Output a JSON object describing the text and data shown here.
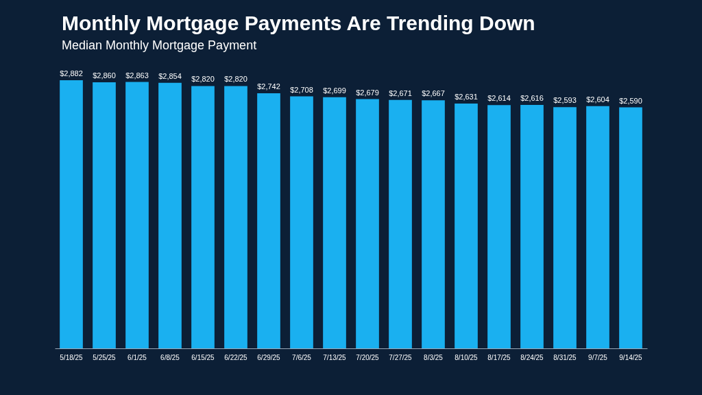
{
  "chart_data": {
    "type": "bar",
    "title": "Monthly Mortgage Payments Are Trending Down",
    "subtitle": "Median Monthly Mortgage Payment",
    "categories": [
      "5/18/25",
      "5/25/25",
      "6/1/25",
      "6/8/25",
      "6/15/25",
      "6/22/25",
      "6/29/25",
      "7/6/25",
      "7/13/25",
      "7/20/25",
      "7/27/25",
      "8/3/25",
      "8/10/25",
      "8/17/25",
      "8/24/25",
      "8/31/25",
      "9/7/25",
      "9/14/25"
    ],
    "values": [
      2882,
      2860,
      2863,
      2854,
      2820,
      2820,
      2742,
      2708,
      2699,
      2679,
      2671,
      2667,
      2631,
      2614,
      2616,
      2593,
      2604,
      2590
    ],
    "value_labels": [
      "$2,882",
      "$2,860",
      "$2,863",
      "$2,854",
      "$2,820",
      "$2,820",
      "$2,742",
      "$2,708",
      "$2,699",
      "$2,679",
      "$2,671",
      "$2,667",
      "$2,631",
      "$2,614",
      "$2,616",
      "$2,593",
      "$2,604",
      "$2,590"
    ],
    "color": "#1ab0f0",
    "tick_labels": "x"
  }
}
